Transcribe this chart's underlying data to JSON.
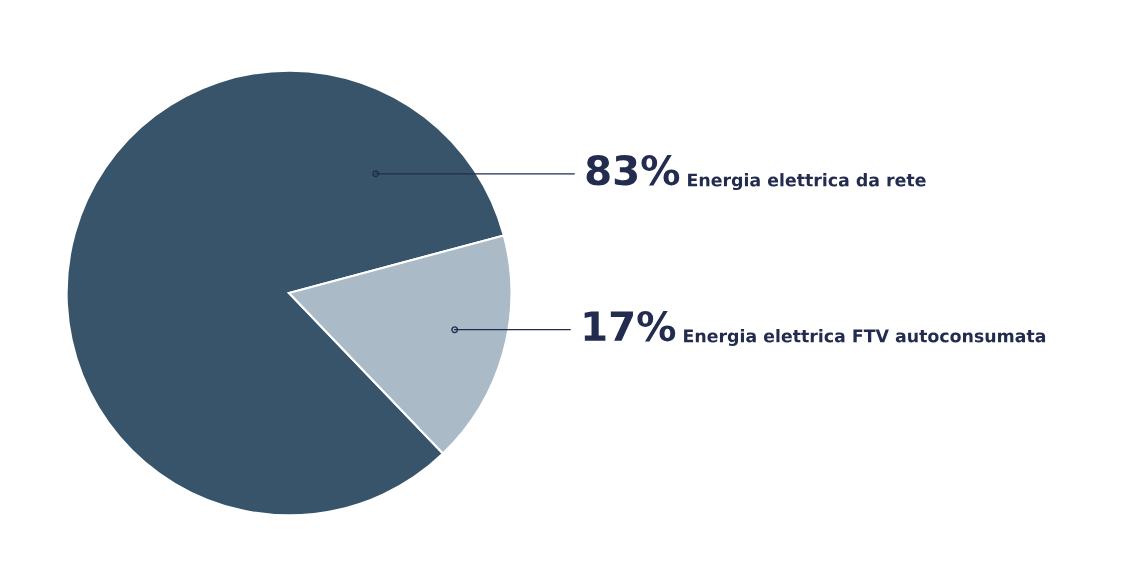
{
  "chart_data": {
    "type": "pie",
    "categories": [
      "Energia elettrica da rete",
      "Energia elettrica FTV autoconsumata"
    ],
    "values": [
      83,
      17
    ],
    "colors": [
      "#38546b",
      "#aabbc7"
    ],
    "value_labels": [
      "83%",
      "17%"
    ]
  }
}
